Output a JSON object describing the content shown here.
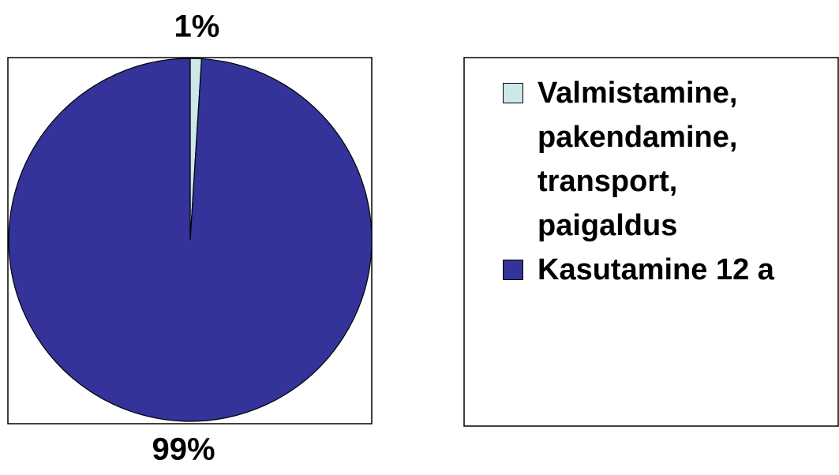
{
  "chart_data": {
    "type": "pie",
    "categories": [
      "Valmistamine, pakendamine, transport, paigaldus",
      "Kasutamine 12 a"
    ],
    "values": [
      1,
      99
    ],
    "value_labels": [
      "1%",
      "99%"
    ],
    "colors": [
      "#cce8e8",
      "#333399"
    ],
    "legend": "right"
  }
}
